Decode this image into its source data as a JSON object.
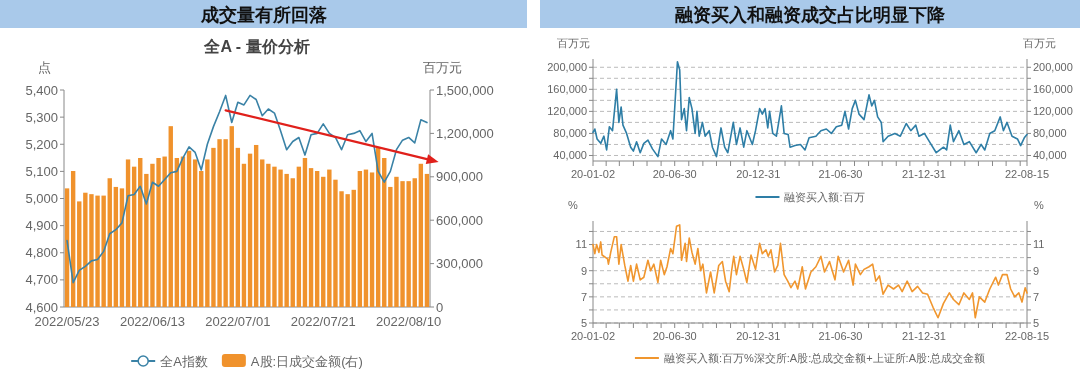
{
  "chart_data": [
    {
      "type": "bar",
      "title": "成交量有所回落",
      "subtitle": "全A - 量价分析",
      "ylabel": "点",
      "y2label": "百万元",
      "legend": "bottom",
      "grid": false,
      "categories": [
        "2022/05/23",
        null,
        null,
        null,
        null,
        null,
        null,
        null,
        null,
        null,
        null,
        null,
        null,
        null,
        "2022/06/13",
        null,
        null,
        null,
        null,
        null,
        null,
        null,
        null,
        null,
        null,
        null,
        null,
        null,
        "2022/07/01",
        null,
        null,
        null,
        null,
        null,
        null,
        null,
        null,
        null,
        null,
        null,
        null,
        null,
        "2022/07/21",
        null,
        null,
        null,
        null,
        null,
        null,
        null,
        null,
        null,
        null,
        null,
        null,
        null,
        "2022/08/10",
        null,
        null,
        null
      ],
      "ylim": [
        4600,
        5400
      ],
      "yticks": [
        {
          "value": 4600,
          "label": "4,600"
        },
        {
          "value": 4700,
          "label": "4,700"
        },
        {
          "value": 4800,
          "label": "4,800"
        },
        {
          "value": 4900,
          "label": "4,900"
        },
        {
          "value": 5000,
          "label": "5,000"
        },
        {
          "value": 5100,
          "label": "5,100"
        },
        {
          "value": 5200,
          "label": "5,200"
        },
        {
          "value": 5300,
          "label": "5,300"
        },
        {
          "value": 5400,
          "label": "5,400"
        }
      ],
      "y2lim": [
        0,
        1500000
      ],
      "y2ticks": [
        0,
        {
          "value": 300000,
          "label": "300,000"
        },
        {
          "value": 600000,
          "label": "600,000"
        },
        {
          "value": 900000,
          "label": "900,000"
        },
        {
          "value": 1200000,
          "label": "1,200,000"
        },
        {
          "value": 1500000,
          "label": "1,500,000"
        }
      ],
      "series": [
        {
          "name": "全A指数",
          "type": "line",
          "color": "#3a82a6",
          "values": [
            4845,
            4690,
            4735,
            4750,
            4770,
            4775,
            4805,
            4870,
            4885,
            4910,
            5010,
            5015,
            5045,
            4980,
            5060,
            5045,
            5070,
            5095,
            5100,
            5150,
            5190,
            5170,
            5105,
            5200,
            5265,
            5320,
            5380,
            5280,
            5355,
            5345,
            5380,
            5365,
            5305,
            5330,
            5315,
            5250,
            5180,
            5210,
            5225,
            5160,
            5235,
            5240,
            5275,
            5240,
            5225,
            5180,
            5235,
            5240,
            5250,
            5210,
            5240,
            5100,
            5060,
            5100,
            5180,
            5215,
            5225,
            5205,
            5290,
            5280
          ]
        },
        {
          "name": "A股:日成交金额(右)",
          "axis": "y2",
          "color": "#f0922c",
          "values": [
            820000,
            940000,
            730000,
            790000,
            780000,
            770000,
            770000,
            890000,
            830000,
            820000,
            1020000,
            970000,
            1030000,
            920000,
            990000,
            1030000,
            1040000,
            1250000,
            1030000,
            1040000,
            1080000,
            1020000,
            940000,
            1020000,
            1100000,
            1160000,
            1160000,
            1250000,
            1100000,
            990000,
            1060000,
            1120000,
            1020000,
            990000,
            970000,
            950000,
            920000,
            890000,
            970000,
            1030000,
            960000,
            940000,
            900000,
            950000,
            880000,
            800000,
            780000,
            810000,
            940000,
            950000,
            930000,
            1100000,
            1030000,
            830000,
            900000,
            870000,
            870000,
            890000,
            990000,
            920000
          ]
        },
        {
          "type": "line",
          "color": "#e0201b",
          "values": [
            null,
            null,
            null,
            null,
            null,
            null,
            null,
            null,
            null,
            null,
            null,
            null,
            null,
            null,
            null,
            null,
            null,
            null,
            null,
            null,
            null,
            null,
            null,
            null,
            null,
            null,
            5325,
            null,
            null,
            null,
            null,
            null,
            null,
            null,
            null,
            null,
            null,
            null,
            null,
            null,
            null,
            null,
            null,
            null,
            null,
            null,
            null,
            null,
            null,
            null,
            null,
            null,
            null,
            null,
            null,
            null,
            null,
            null,
            null,
            5145
          ]
        }
      ]
    },
    {
      "type": "line",
      "title": "融资买入和融资成交占比明显下降",
      "ylabel": "百万元",
      "y2label": "百万元",
      "legend": "bottom",
      "grid": true,
      "xlim": [
        "2020-01-02",
        "2022-08-15"
      ],
      "xticks": [
        {
          "value": "2020-01-02",
          "label": "20-01-02"
        },
        {
          "value": "2020-01-31",
          "label": null
        },
        {
          "value": "2020-02-29",
          "label": null
        },
        {
          "value": "2020-03-31",
          "label": null
        },
        {
          "value": "2020-04-30",
          "label": null
        },
        {
          "value": "2020-05-31",
          "label": null
        },
        {
          "value": "2020-06-30",
          "label": "20-06-30"
        },
        {
          "value": "2020-07-31",
          "label": null
        },
        {
          "value": "2020-08-31",
          "label": null
        },
        {
          "value": "2020-09-30",
          "label": null
        },
        {
          "value": "2020-10-31",
          "label": null
        },
        {
          "value": "2020-11-30",
          "label": null
        },
        {
          "value": "2020-12-31",
          "label": "20-12-31"
        },
        {
          "value": "2021-01-31",
          "label": null
        },
        {
          "value": "2021-02-28",
          "label": null
        },
        {
          "value": "2021-03-31",
          "label": null
        },
        {
          "value": "2021-04-30",
          "label": null
        },
        {
          "value": "2021-05-31",
          "label": null
        },
        {
          "value": "2021-06-30",
          "label": "21-06-30"
        },
        {
          "value": "2021-07-31",
          "label": null
        },
        {
          "value": "2021-08-31",
          "label": null
        },
        {
          "value": "2021-09-30",
          "label": null
        },
        {
          "value": "2021-10-31",
          "label": null
        },
        {
          "value": "2021-11-30",
          "label": null
        },
        {
          "value": "2021-12-31",
          "label": "21-12-31"
        },
        {
          "value": "2022-01-31",
          "label": null
        },
        {
          "value": "2022-02-28",
          "label": null
        },
        {
          "value": "2022-03-31",
          "label": null
        },
        {
          "value": "2022-04-30",
          "label": null
        },
        {
          "value": "2022-05-31",
          "label": null
        },
        {
          "value": "2022-06-30",
          "label": null
        },
        {
          "value": "2022-07-31",
          "label": null
        },
        {
          "value": "2022-08-15",
          "label": "22-08-15"
        }
      ],
      "ylim": [
        30000,
        215000
      ],
      "yticks": [
        {
          "value": 40000,
          "label": "40,000"
        },
        {
          "value": 60000,
          "label": null
        },
        {
          "value": 80000,
          "label": "80,000"
        },
        {
          "value": 100000,
          "label": null
        },
        {
          "value": 120000,
          "label": "120,000"
        },
        {
          "value": 140000,
          "label": null
        },
        {
          "value": 160000,
          "label": "160,000"
        },
        {
          "value": 180000,
          "label": null
        },
        {
          "value": 200000,
          "label": "200,000"
        }
      ],
      "y2lim": [
        30000,
        215000
      ],
      "y2ticks": [
        {
          "value": 40000,
          "label": "40,000"
        },
        {
          "value": 60000,
          "label": null
        },
        {
          "value": 80000,
          "label": "80,000"
        },
        {
          "value": 100000,
          "label": null
        },
        {
          "value": 120000,
          "label": "120,000"
        },
        {
          "value": 140000,
          "label": null
        },
        {
          "value": 160000,
          "label": "160,000"
        },
        {
          "value": 180000,
          "label": null
        },
        {
          "value": 200000,
          "label": "200,000"
        }
      ],
      "x": [
        "2020-01-02",
        "2020-01-06",
        "2020-01-11",
        "2020-01-19",
        "2020-01-26",
        "2020-02-01",
        "2020-02-07",
        "2020-02-14",
        "2020-02-23",
        "2020-02-28",
        "2020-03-04",
        "2020-03-08",
        "2020-03-16",
        "2020-03-25",
        "2020-03-31",
        "2020-04-07",
        "2020-04-15",
        "2020-04-23",
        "2020-05-02",
        "2020-05-12",
        "2020-05-24",
        "2020-06-01",
        "2020-06-11",
        "2020-06-21",
        "2020-06-26",
        "2020-07-06",
        "2020-07-11",
        "2020-07-15",
        "2020-07-21",
        "2020-07-26",
        "2020-08-01",
        "2020-08-07",
        "2020-08-14",
        "2020-08-18",
        "2020-08-23",
        "2020-08-30",
        "2020-09-05",
        "2020-09-14",
        "2020-09-21",
        "2020-09-30",
        "2020-10-10",
        "2020-10-18",
        "2020-10-25",
        "2020-11-06",
        "2020-11-13",
        "2020-11-21",
        "2020-11-29",
        "2020-12-06",
        "2020-12-18",
        "2020-12-25",
        "2021-01-03",
        "2021-01-09",
        "2021-01-15",
        "2021-01-21",
        "2021-01-25",
        "2021-02-01",
        "2021-02-09",
        "2021-02-20",
        "2021-02-26",
        "2021-03-07",
        "2021-03-11",
        "2021-03-22",
        "2021-04-03",
        "2021-04-13",
        "2021-04-22",
        "2021-05-07",
        "2021-05-18",
        "2021-05-30",
        "2021-06-10",
        "2021-06-21",
        "2021-07-03",
        "2021-07-10",
        "2021-07-18",
        "2021-07-26",
        "2021-08-02",
        "2021-08-10",
        "2021-08-21",
        "2021-09-01",
        "2021-09-07",
        "2021-09-13",
        "2021-09-20",
        "2021-09-28",
        "2021-10-02",
        "2021-10-13",
        "2021-10-28",
        "2021-11-09",
        "2021-11-22",
        "2021-12-02",
        "2021-12-13",
        "2021-12-20",
        "2022-01-01",
        "2022-01-12",
        "2022-01-27",
        "2022-02-12",
        "2022-02-19",
        "2022-02-27",
        "2022-03-06",
        "2022-03-18",
        "2022-03-29",
        "2022-04-10",
        "2022-04-25",
        "2022-05-06",
        "2022-05-14",
        "2022-05-25",
        "2022-06-05",
        "2022-06-17",
        "2022-06-24",
        "2022-07-02",
        "2022-07-13",
        "2022-07-25",
        "2022-08-01",
        "2022-08-09",
        "2022-08-15"
      ],
      "series": [
        {
          "name": "融资买入额:百万",
          "color": "#2e7ea6",
          "values": [
            82000,
            88000,
            70000,
            62000,
            75000,
            50000,
            92000,
            85000,
            160000,
            100000,
            128000,
            95000,
            80000,
            55000,
            48000,
            65000,
            45000,
            62000,
            68000,
            52000,
            38000,
            70000,
            60000,
            85000,
            70000,
            210000,
            195000,
            105000,
            125000,
            85000,
            145000,
            125000,
            80000,
            120000,
            75000,
            100000,
            75000,
            85000,
            55000,
            38000,
            90000,
            55000,
            45000,
            100000,
            60000,
            90000,
            55000,
            85000,
            60000,
            85000,
            125000,
            115000,
            125000,
            90000,
            120000,
            80000,
            75000,
            130000,
            80000,
            78000,
            55000,
            58000,
            60000,
            50000,
            72000,
            75000,
            85000,
            88000,
            80000,
            92000,
            95000,
            120000,
            88000,
            125000,
            140000,
            115000,
            105000,
            150000,
            130000,
            140000,
            110000,
            100000,
            65000,
            75000,
            80000,
            75000,
            98000,
            85000,
            95000,
            75000,
            80000,
            65000,
            45000,
            55000,
            50000,
            95000,
            65000,
            85000,
            60000,
            65000,
            45000,
            60000,
            50000,
            80000,
            85000,
            110000,
            85000,
            100000,
            75000,
            70000,
            58000,
            72000,
            78000
          ]
        }
      ]
    },
    {
      "type": "line",
      "ylabel": "%",
      "y2label": "%",
      "legend": "bottom",
      "grid": true,
      "xlim": [
        "2020-01-02",
        "2022-08-15"
      ],
      "xticks": [
        {
          "value": "2020-01-02",
          "label": "20-01-02"
        },
        {
          "value": "2020-01-31",
          "label": null
        },
        {
          "value": "2020-02-29",
          "label": null
        },
        {
          "value": "2020-03-31",
          "label": null
        },
        {
          "value": "2020-04-30",
          "label": null
        },
        {
          "value": "2020-05-31",
          "label": null
        },
        {
          "value": "2020-06-30",
          "label": "20-06-30"
        },
        {
          "value": "2020-07-31",
          "label": null
        },
        {
          "value": "2020-08-31",
          "label": null
        },
        {
          "value": "2020-09-30",
          "label": null
        },
        {
          "value": "2020-10-31",
          "label": null
        },
        {
          "value": "2020-11-30",
          "label": null
        },
        {
          "value": "2020-12-31",
          "label": "20-12-31"
        },
        {
          "value": "2021-01-31",
          "label": null
        },
        {
          "value": "2021-02-28",
          "label": null
        },
        {
          "value": "2021-03-31",
          "label": null
        },
        {
          "value": "2021-04-30",
          "label": null
        },
        {
          "value": "2021-05-31",
          "label": null
        },
        {
          "value": "2021-06-30",
          "label": "21-06-30"
        },
        {
          "value": "2021-07-31",
          "label": null
        },
        {
          "value": "2021-08-31",
          "label": null
        },
        {
          "value": "2021-09-30",
          "label": null
        },
        {
          "value": "2021-10-31",
          "label": null
        },
        {
          "value": "2021-11-30",
          "label": null
        },
        {
          "value": "2021-12-31",
          "label": "21-12-31"
        },
        {
          "value": "2022-01-31",
          "label": null
        },
        {
          "value": "2022-02-28",
          "label": null
        },
        {
          "value": "2022-03-31",
          "label": null
        },
        {
          "value": "2022-04-30",
          "label": null
        },
        {
          "value": "2022-05-31",
          "label": null
        },
        {
          "value": "2022-06-30",
          "label": null
        },
        {
          "value": "2022-07-31",
          "label": null
        },
        {
          "value": "2022-08-15",
          "label": "22-08-15"
        }
      ],
      "ylim": [
        5,
        12.8
      ],
      "yticks": [
        5,
        {
          "value": 6,
          "label": null
        },
        7,
        {
          "value": 8,
          "label": null
        },
        9,
        {
          "value": 10,
          "label": null
        },
        11,
        {
          "value": 12,
          "label": null
        }
      ],
      "y2lim": [
        5,
        12.8
      ],
      "y2ticks": [
        5,
        {
          "value": 6,
          "label": null
        },
        7,
        {
          "value": 8,
          "label": null
        },
        9,
        {
          "value": 10,
          "label": null
        },
        11,
        {
          "value": 12,
          "label": null
        }
      ],
      "x": [
        "2020-01-02",
        "2020-01-06",
        "2020-01-10",
        "2020-01-15",
        "2020-01-19",
        "2020-01-22",
        "2020-02-03",
        "2020-02-05",
        "2020-02-10",
        "2020-02-18",
        "2020-02-23",
        "2020-02-28",
        "2020-03-04",
        "2020-03-12",
        "2020-03-19",
        "2020-03-25",
        "2020-03-31",
        "2020-04-07",
        "2020-04-15",
        "2020-04-23",
        "2020-05-02",
        "2020-05-08",
        "2020-05-15",
        "2020-05-24",
        "2020-05-30",
        "2020-06-07",
        "2020-06-13",
        "2020-06-21",
        "2020-06-26",
        "2020-07-04",
        "2020-07-11",
        "2020-07-15",
        "2020-07-23",
        "2020-07-26",
        "2020-08-01",
        "2020-08-07",
        "2020-08-14",
        "2020-08-20",
        "2020-08-26",
        "2020-08-31",
        "2020-09-08",
        "2020-09-17",
        "2020-09-25",
        "2020-10-05",
        "2020-10-13",
        "2020-10-20",
        "2020-10-28",
        "2020-11-02",
        "2020-11-07",
        "2020-11-13",
        "2020-11-21",
        "2020-11-29",
        "2020-12-06",
        "2020-12-15",
        "2020-12-25",
        "2021-01-03",
        "2021-01-09",
        "2021-01-17",
        "2021-01-22",
        "2021-01-28",
        "2021-02-05",
        "2021-02-12",
        "2021-02-18",
        "2021-02-26",
        "2021-03-06",
        "2021-03-13",
        "2021-03-22",
        "2021-03-28",
        "2021-04-07",
        "2021-04-14",
        "2021-04-26",
        "2021-05-07",
        "2021-05-18",
        "2021-05-26",
        "2021-06-06",
        "2021-06-18",
        "2021-06-25",
        "2021-07-07",
        "2021-07-18",
        "2021-07-28",
        "2021-08-02",
        "2021-08-13",
        "2021-08-21",
        "2021-09-01",
        "2021-09-09",
        "2021-09-16",
        "2021-09-24",
        "2021-10-02",
        "2021-10-13",
        "2021-10-25",
        "2021-11-05",
        "2021-11-13",
        "2021-11-24",
        "2021-12-05",
        "2021-12-17",
        "2021-12-28",
        "2022-01-08",
        "2022-01-20",
        "2022-01-31",
        "2022-02-12",
        "2022-02-25",
        "2022-03-06",
        "2022-03-18",
        "2022-03-29",
        "2022-04-10",
        "2022-04-17",
        "2022-04-23",
        "2022-05-02",
        "2022-05-14",
        "2022-05-25",
        "2022-06-07",
        "2022-06-13",
        "2022-06-22",
        "2022-07-02",
        "2022-07-10",
        "2022-07-19",
        "2022-07-28",
        "2022-08-04",
        "2022-08-11",
        "2022-08-15"
      ],
      "series": [
        {
          "name": "融资买入额:百万%深交所:A股:总成交金额+上证所:A股:总成交金额",
          "color": "#f0962e",
          "values": [
            11.0,
            10.3,
            11.0,
            10.4,
            11.2,
            10.2,
            9.9,
            9.5,
            10.4,
            11.6,
            11.6,
            9.5,
            11.0,
            9.4,
            8.2,
            9.4,
            8.2,
            9.5,
            8.3,
            8.5,
            9.8,
            9.0,
            9.5,
            8.1,
            9.8,
            8.7,
            9.3,
            10.7,
            10.3,
            12.4,
            12.5,
            9.8,
            11.1,
            9.7,
            11.5,
            10.4,
            9.5,
            10.7,
            9.0,
            9.5,
            7.3,
            8.9,
            7.3,
            9.4,
            9.7,
            8.2,
            7.4,
            8.9,
            10.1,
            8.7,
            10.1,
            9.1,
            8.1,
            10.2,
            9.1,
            11.1,
            10.3,
            10.6,
            10.1,
            10.6,
            8.9,
            9.4,
            11.1,
            8.7,
            8.2,
            7.7,
            8.2,
            7.6,
            9.3,
            7.6,
            8.9,
            9.3,
            10.1,
            8.9,
            9.7,
            8.3,
            10.1,
            8.9,
            9.8,
            7.9,
            9.5,
            8.7,
            9.1,
            9.3,
            9.5,
            8.2,
            8.6,
            7.2,
            7.9,
            7.6,
            7.9,
            7.4,
            8.2,
            7.4,
            7.8,
            7.3,
            7.2,
            6.2,
            5.4,
            6.5,
            7.3,
            6.8,
            6.4,
            7.3,
            6.8,
            7.3,
            5.4,
            7.0,
            6.6,
            7.6,
            8.5,
            7.9,
            8.7,
            8.7,
            7.6,
            7.0,
            7.3,
            6.6,
            7.7,
            7.3
          ]
        }
      ]
    }
  ]
}
